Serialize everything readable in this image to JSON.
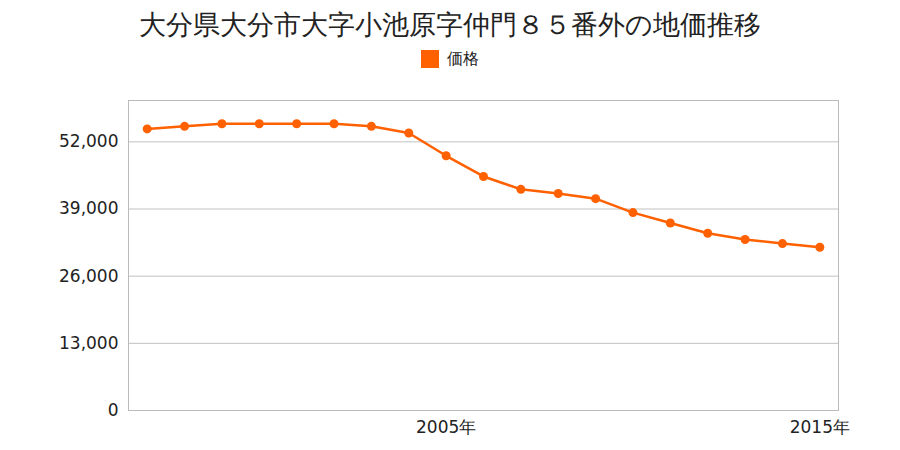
{
  "chart_data": {
    "type": "line",
    "title": "大分県大分市大字小池原字仲門８５番外の地価推移",
    "x": [
      1997,
      1998,
      1999,
      2000,
      2001,
      2002,
      2003,
      2004,
      2005,
      2006,
      2007,
      2008,
      2009,
      2010,
      2011,
      2012,
      2013,
      2014,
      2015
    ],
    "series": [
      {
        "name": "価格",
        "color": "#ff6000",
        "marker": "circle",
        "line_style": "solid",
        "values": [
          54500,
          55000,
          55500,
          55500,
          55500,
          55500,
          55000,
          53700,
          49300,
          45300,
          42800,
          42000,
          41000,
          38300,
          36300,
          34300,
          33100,
          32300,
          31600
        ]
      }
    ],
    "xlim": [
      1996.5,
      2015.5
    ],
    "xticks": [
      {
        "value": 2005,
        "label": "2005年"
      },
      {
        "value": 2015,
        "label": "2015年"
      }
    ],
    "ylim": [
      0,
      60000
    ],
    "yticks": [
      0,
      {
        "value": 13000,
        "label": "13,000"
      },
      {
        "value": 26000,
        "label": "26,000"
      },
      {
        "value": 39000,
        "label": "39,000"
      },
      {
        "value": 52000,
        "label": "52,000"
      }
    ],
    "grid": true,
    "legend": "top"
  }
}
